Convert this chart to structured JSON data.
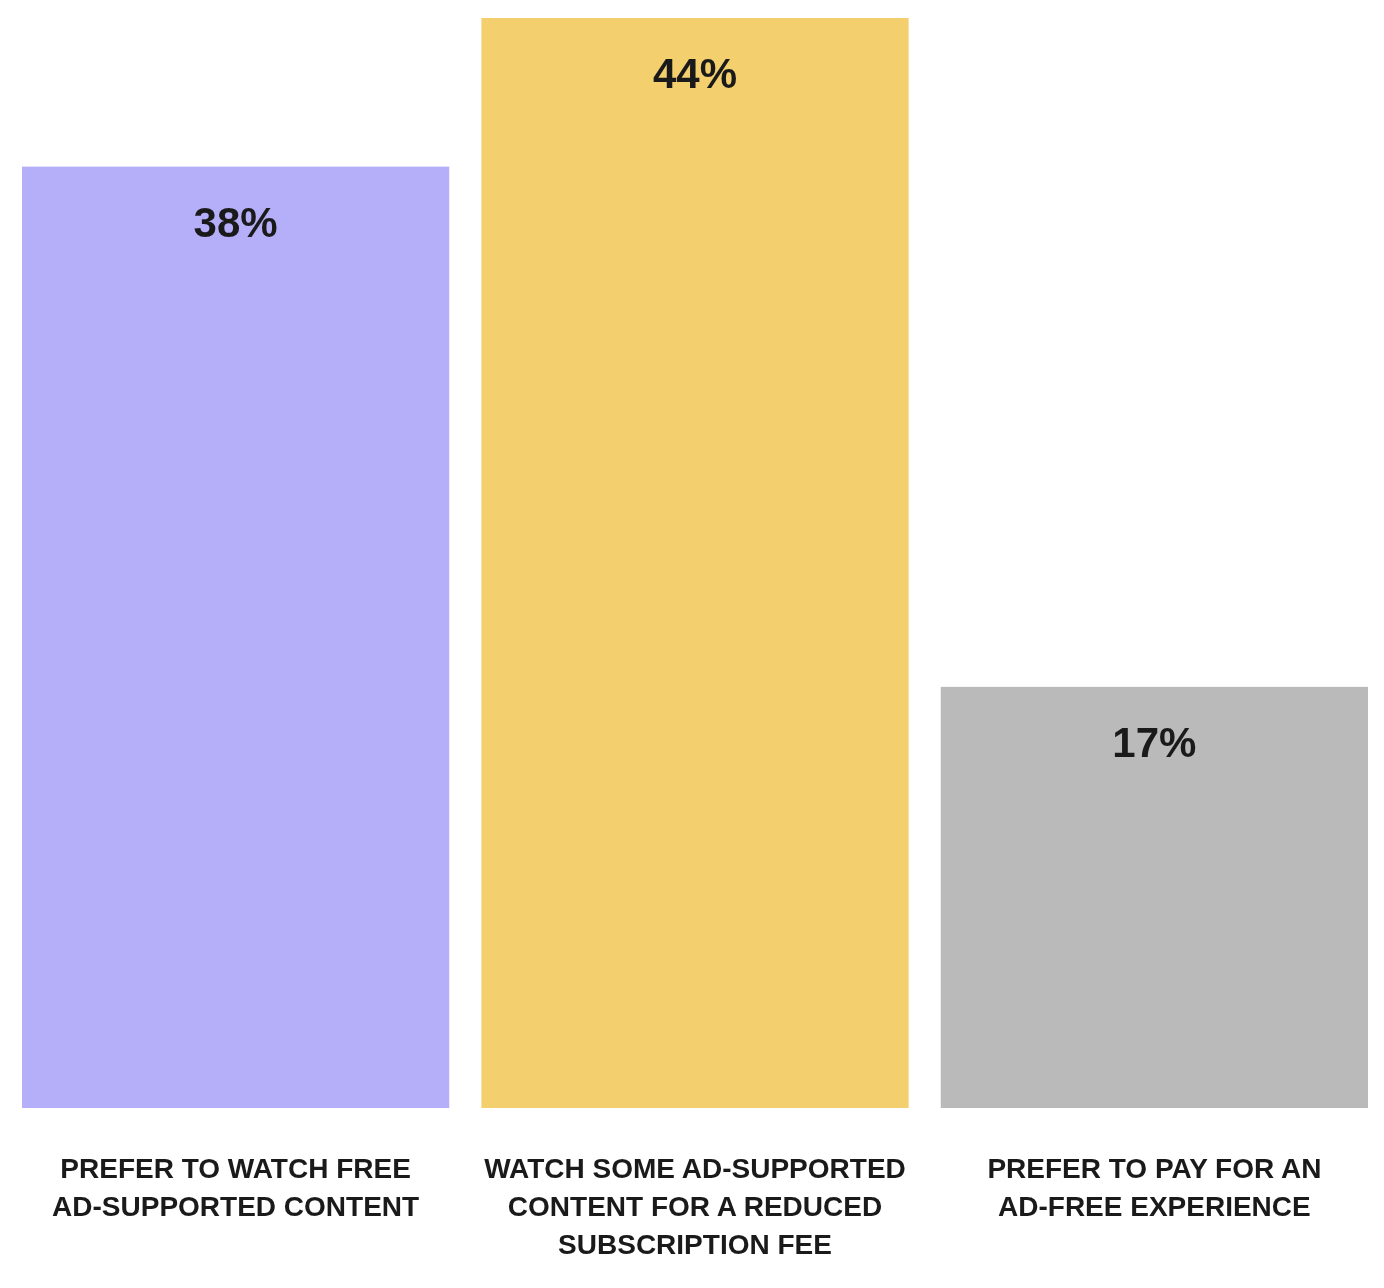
{
  "chart_data": {
    "type": "bar",
    "categories": [
      "PREFER TO WATCH FREE AD-SUPPORTED CONTENT",
      "WATCH SOME AD-SUPPORTED CONTENT FOR A REDUCED SUBSCRIPTION FEE",
      "PREFER TO PAY FOR AN AD-FREE EXPERIENCE"
    ],
    "values": [
      38,
      44,
      17
    ],
    "colors": [
      "#b5aef8",
      "#f4cf6e",
      "#bababa"
    ],
    "value_labels": [
      "38%",
      "44%",
      "17%"
    ]
  }
}
